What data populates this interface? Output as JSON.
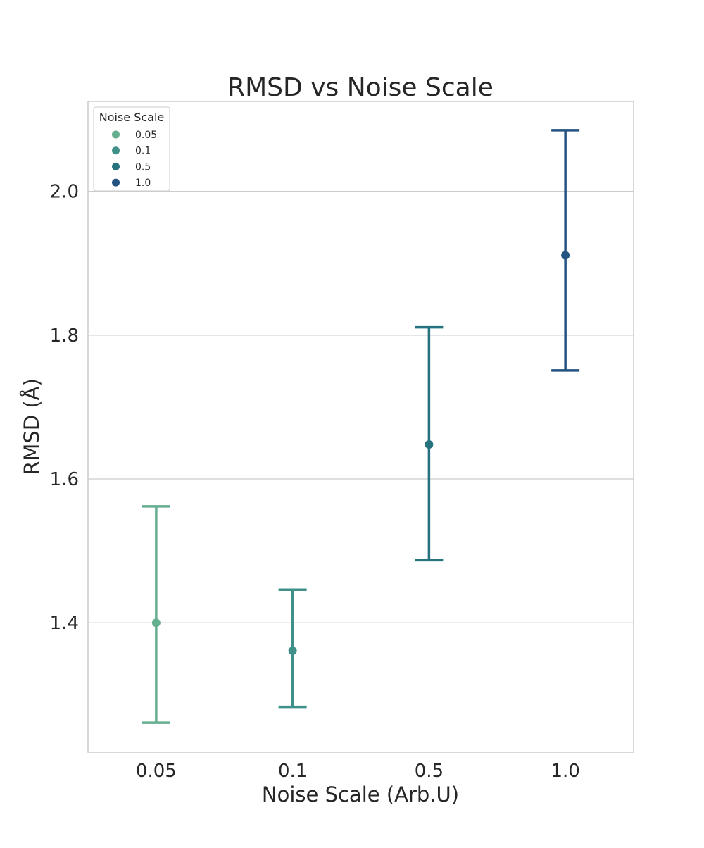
{
  "chart_data": {
    "type": "scatter",
    "title": "RMSD vs Noise Scale",
    "xlabel": "Noise Scale (Arb.U)",
    "ylabel": "RMSD (Å)",
    "categories": [
      "0.05",
      "0.1",
      "0.5",
      "1.0"
    ],
    "series": [
      {
        "name": "0.05",
        "color": "#65ae8f",
        "mean": 1.4,
        "lower": 1.261,
        "upper": 1.562
      },
      {
        "name": "0.1",
        "color": "#40908a",
        "mean": 1.361,
        "lower": 1.283,
        "upper": 1.446
      },
      {
        "name": "0.5",
        "color": "#27727f",
        "mean": 1.648,
        "lower": 1.487,
        "upper": 1.811
      },
      {
        "name": "1.0",
        "color": "#225381",
        "mean": 1.911,
        "lower": 1.751,
        "upper": 2.085
      }
    ],
    "ylim": [
      1.22,
      2.125
    ],
    "yticks": [
      1.4,
      1.6,
      1.8,
      2.0
    ],
    "ytick_labels": [
      "1.4",
      "1.6",
      "1.8",
      "2.0"
    ],
    "grid": "horizontal",
    "legend": {
      "title": "Noise Scale",
      "placement": "top-left",
      "entries": [
        "0.05",
        "0.1",
        "0.5",
        "1.0"
      ]
    }
  }
}
